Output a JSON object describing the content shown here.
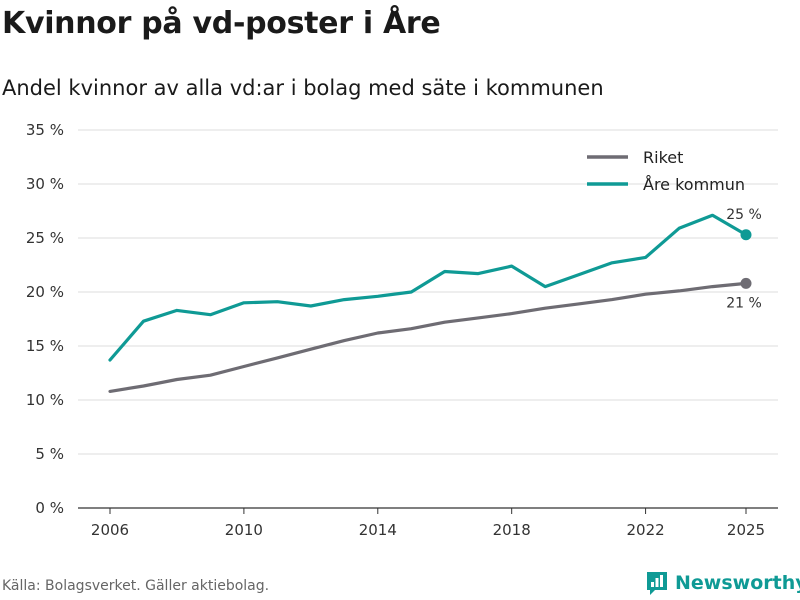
{
  "title": "Kvinnor på vd-poster i Åre",
  "subtitle": "Andel kvinnor av alla vd:ar i bolag med säte i kommunen",
  "source": "Källa: Bolagsverket. Gäller aktiebolag.",
  "brand": "Newsworthy",
  "colors": {
    "riket": "#6e6c73",
    "are": "#0f9a95",
    "grid": "#dddddd",
    "axis": "#333333"
  },
  "chart_data": {
    "type": "line",
    "x": [
      2006,
      2007,
      2008,
      2009,
      2010,
      2011,
      2012,
      2013,
      2014,
      2015,
      2016,
      2017,
      2018,
      2019,
      2020,
      2021,
      2022,
      2023,
      2024,
      2025
    ],
    "xticks": [
      2006,
      2010,
      2014,
      2018,
      2022,
      2025
    ],
    "xtick_labels": [
      "2006",
      "2010",
      "2014",
      "2018",
      "2022",
      "2025"
    ],
    "ylim": [
      0,
      35
    ],
    "yticks": [
      0,
      5,
      10,
      15,
      20,
      25,
      30,
      35
    ],
    "ytick_labels": [
      "0 %",
      "5 %",
      "10 %",
      "15 %",
      "20 %",
      "25 %",
      "30 %",
      "35 %"
    ],
    "legend_position": "top-right",
    "series": [
      {
        "name": "Riket",
        "color_key": "riket",
        "values": [
          10.8,
          11.3,
          11.9,
          12.3,
          13.1,
          13.9,
          14.7,
          15.5,
          16.2,
          16.6,
          17.2,
          17.6,
          18.0,
          18.5,
          18.9,
          19.3,
          19.8,
          20.1,
          20.5,
          20.8
        ],
        "end_label": "21 %",
        "end_label_position": "below"
      },
      {
        "name": "Åre kommun",
        "color_key": "are",
        "values": [
          13.7,
          17.3,
          18.3,
          17.9,
          19.0,
          19.1,
          18.7,
          19.3,
          19.6,
          20.0,
          21.9,
          21.7,
          22.4,
          20.5,
          21.6,
          22.7,
          23.2,
          25.9,
          27.1,
          25.3
        ],
        "end_label": "25 %",
        "end_label_position": "above"
      }
    ]
  }
}
